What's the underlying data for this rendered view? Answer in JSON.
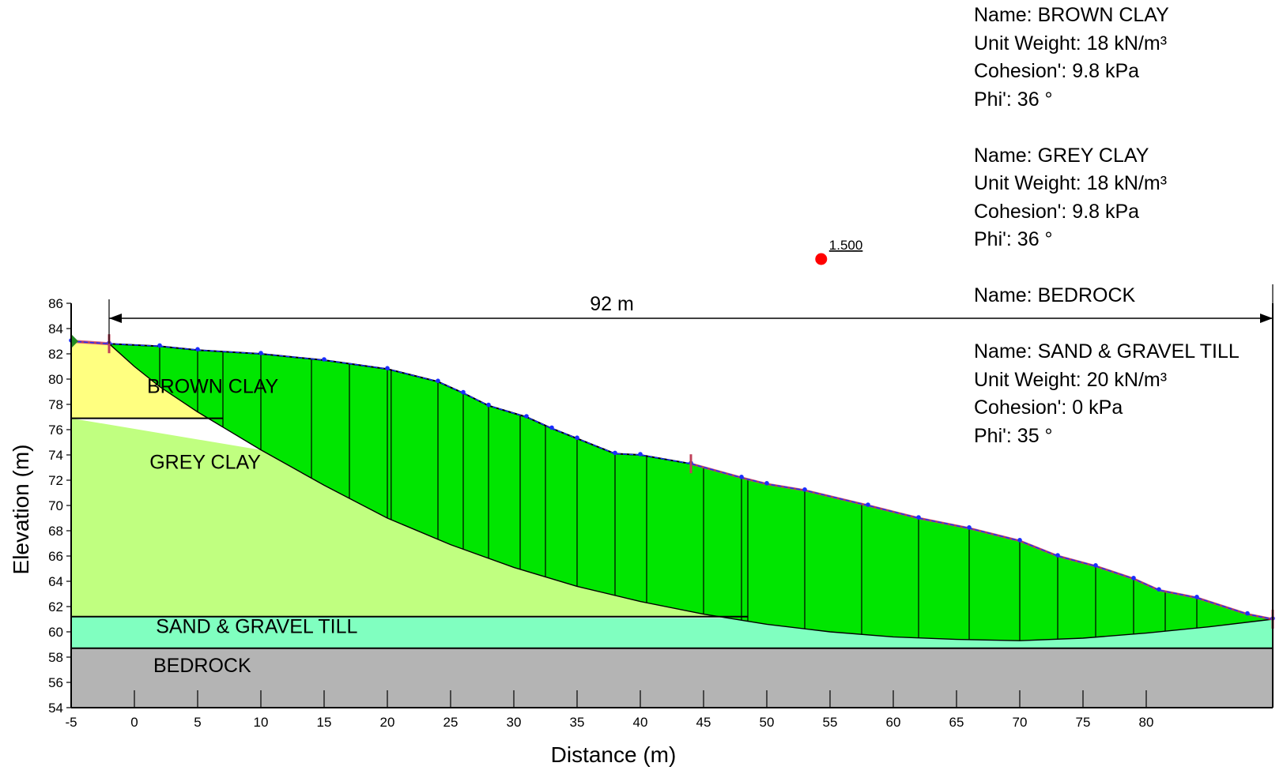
{
  "axes": {
    "xlabel": "Distance (m)",
    "ylabel": "Elevation (m)",
    "xlim": [
      -5,
      90
    ],
    "ylim": [
      54,
      86
    ],
    "xticks": [
      -5,
      0,
      5,
      10,
      15,
      20,
      25,
      30,
      35,
      40,
      45,
      50,
      55,
      60,
      65,
      70,
      75,
      80
    ],
    "yticks": [
      54,
      56,
      58,
      60,
      62,
      64,
      66,
      68,
      70,
      72,
      74,
      76,
      78,
      80,
      82,
      84,
      86
    ]
  },
  "dimension": {
    "label": "92 m",
    "from_x": -2,
    "to_x": 90
  },
  "slip_center": {
    "factor_of_safety": "1.500",
    "x": 54.3,
    "y": 89.5,
    "color": "#ff0000"
  },
  "layers": [
    {
      "name": "BROWN CLAY",
      "label_x": 1,
      "label_y": 78.9,
      "color": "#ffff80"
    },
    {
      "name": "GREY CLAY",
      "label_x": 1.2,
      "label_y": 72.9,
      "color": "#c0ff80"
    },
    {
      "name": "SAND & GRAVEL TILL",
      "label_x": 1.7,
      "label_y": 59.9,
      "color": "#80ffc0"
    },
    {
      "name": "BEDROCK",
      "label_x": 1.5,
      "label_y": 56.8,
      "color": "#b4b4b4"
    }
  ],
  "sliding_mass_color": "#00e600",
  "surface": [
    [
      -5,
      83.0
    ],
    [
      -2,
      82.8
    ],
    [
      2,
      82.6
    ],
    [
      5,
      82.3
    ],
    [
      10,
      82.0
    ],
    [
      15,
      81.5
    ],
    [
      20,
      80.8
    ],
    [
      24,
      79.8
    ],
    [
      26,
      78.9
    ],
    [
      28,
      77.9
    ],
    [
      31,
      77.0
    ],
    [
      33,
      76.1
    ],
    [
      35,
      75.3
    ],
    [
      38,
      74.1
    ],
    [
      40,
      74.0
    ],
    [
      44,
      73.3
    ],
    [
      48,
      72.2
    ],
    [
      50,
      71.7
    ],
    [
      53,
      71.2
    ],
    [
      58,
      70.0
    ],
    [
      62,
      69.0
    ],
    [
      66,
      68.2
    ],
    [
      70,
      67.2
    ],
    [
      73,
      66.0
    ],
    [
      76,
      65.2
    ],
    [
      79,
      64.2
    ],
    [
      81,
      63.3
    ],
    [
      84,
      62.7
    ],
    [
      88,
      61.4
    ],
    [
      90,
      61.0
    ]
  ],
  "slip_surface": [
    [
      -2,
      82.8
    ],
    [
      0,
      81.0
    ],
    [
      2,
      79.4
    ],
    [
      5,
      77.4
    ],
    [
      7,
      76.2
    ],
    [
      10,
      74.4
    ],
    [
      15,
      71.6
    ],
    [
      20,
      69.0
    ],
    [
      25,
      66.9
    ],
    [
      30,
      65.1
    ],
    [
      35,
      63.6
    ],
    [
      40,
      62.4
    ],
    [
      45,
      61.4
    ],
    [
      50,
      60.6
    ],
    [
      55,
      60.0
    ],
    [
      60,
      59.6
    ],
    [
      65,
      59.4
    ],
    [
      70,
      59.3
    ],
    [
      75,
      59.5
    ],
    [
      80,
      59.9
    ],
    [
      85,
      60.4
    ],
    [
      90,
      61.0
    ]
  ],
  "slice_x": [
    2,
    5,
    7,
    10,
    14,
    17,
    20,
    20.3,
    24,
    26,
    28,
    30.5,
    32.5,
    35,
    38,
    40.5,
    45,
    48,
    48.5,
    53,
    57.5,
    62,
    66,
    70,
    73,
    76,
    79,
    81.5,
    84
  ],
  "boundaries": {
    "brown_grey": [
      [
        -5,
        76.9
      ],
      [
        7,
        76.9
      ]
    ],
    "grey_till": [
      [
        -5,
        61.2
      ],
      [
        48.5,
        61.2
      ]
    ],
    "till_bedrock": [
      [
        -5,
        58.7
      ],
      [
        90,
        58.7
      ]
    ]
  },
  "materials": [
    {
      "name_line": "Name: BROWN CLAY",
      "lines": [
        "Unit Weight: 18 kN/m³",
        "Cohesion': 9.8 kPa",
        "Phi': 36 °"
      ]
    },
    {
      "name_line": "Name: GREY CLAY",
      "lines": [
        "Unit Weight: 18 kN/m³",
        "Cohesion': 9.8 kPa",
        "Phi': 36 °"
      ]
    },
    {
      "name_line": "Name: BEDROCK",
      "lines": []
    },
    {
      "name_line": "Name: SAND & GRAVEL TILL",
      "lines": [
        "Unit Weight: 20 kN/m³",
        "Cohesion': 0 kPa",
        "Phi': 35 °"
      ]
    }
  ]
}
